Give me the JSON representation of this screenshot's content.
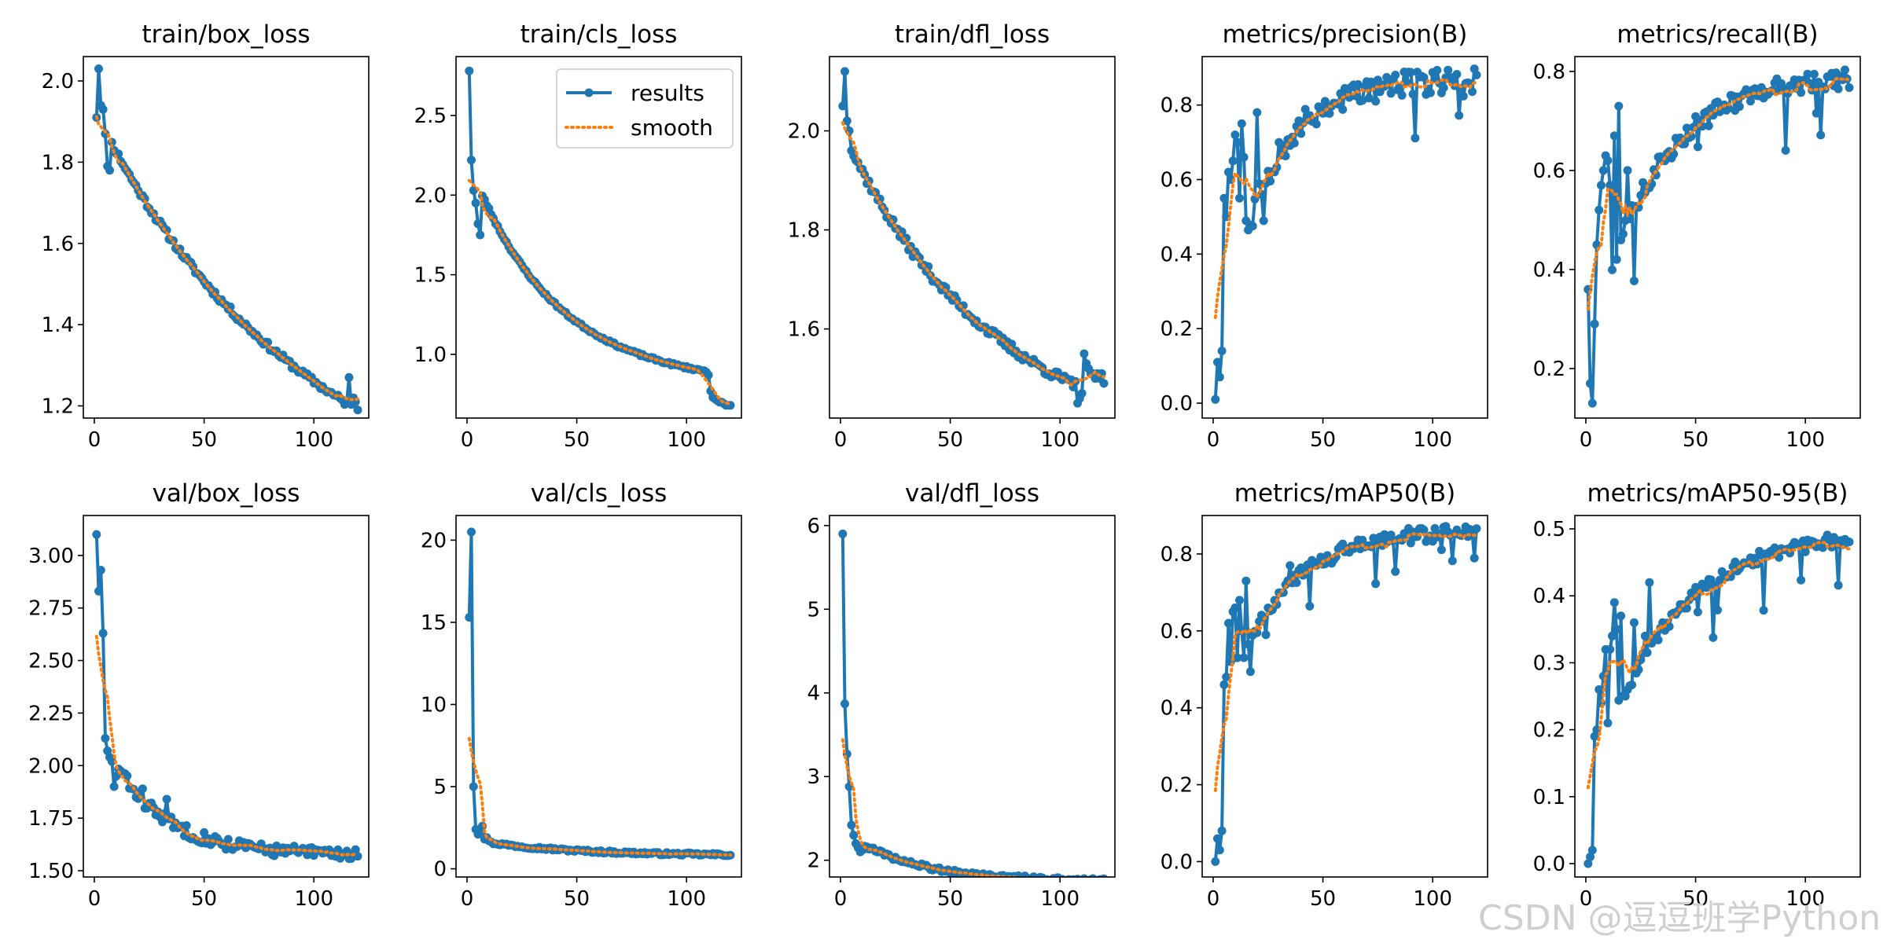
{
  "colors": {
    "results": "#1f77b4",
    "smooth": "#ff7f0e"
  },
  "watermark": "CSDN @逗逗班学Python",
  "legend": {
    "placement": "upper right of train/cls_loss panel",
    "results_label": "results",
    "smooth_label": "smooth"
  },
  "chart_data": [
    {
      "type": "line",
      "title": "train/box_loss",
      "xlim": [
        -5,
        125
      ],
      "ylim": [
        1.17,
        2.06
      ],
      "xticks": [
        0,
        50,
        100
      ],
      "yticks": [
        1.2,
        1.4,
        1.6,
        1.8,
        2.0
      ],
      "ytick_labels": [
        "1.2",
        "1.4",
        "1.6",
        "1.8",
        "2.0"
      ],
      "kind": "decay",
      "start": 1.92,
      "end": 1.19,
      "k": 1.6,
      "seed": 11,
      "special": {
        "1": 1.91,
        "2": 2.03,
        "3": 1.94,
        "4": 1.93,
        "5": 1.87,
        "6": 1.79,
        "7": 1.78,
        "116": 1.27,
        "118": 1.22,
        "119": 1.21,
        "120": 1.19
      },
      "noise": 0.008,
      "spikes": 0,
      "legend": false
    },
    {
      "type": "line",
      "title": "train/cls_loss",
      "xlim": [
        -5,
        125
      ],
      "ylim": [
        0.6,
        2.87
      ],
      "xticks": [
        0,
        50,
        100
      ],
      "yticks": [
        1.0,
        1.5,
        2.0,
        2.5
      ],
      "ytick_labels": [
        "1.0",
        "1.5",
        "2.0",
        "2.5"
      ],
      "kind": "decay",
      "start": 2.2,
      "end": 0.87,
      "k": 3.2,
      "seed": 23,
      "special": {
        "1": 2.78,
        "2": 2.22,
        "3": 2.03,
        "4": 1.95,
        "5": 1.82,
        "6": 1.75,
        "110": 0.87,
        "111": 0.77,
        "112": 0.73,
        "113": 0.72,
        "114": 0.71,
        "115": 0.7,
        "116": 0.7,
        "117": 0.69,
        "118": 0.68,
        "119": 0.68,
        "120": 0.68
      },
      "noise": 0.008,
      "spikes": 0,
      "legend": true
    },
    {
      "type": "line",
      "title": "train/dfl_loss",
      "xlim": [
        -5,
        125
      ],
      "ylim": [
        1.42,
        2.15
      ],
      "xticks": [
        0,
        50,
        100
      ],
      "yticks": [
        1.6,
        1.8,
        2.0
      ],
      "ytick_labels": [
        "1.6",
        "1.8",
        "2.0"
      ],
      "kind": "decay",
      "start": 2.0,
      "end": 1.46,
      "k": 2.0,
      "seed": 37,
      "special": {
        "1": 2.05,
        "2": 2.12,
        "3": 2.02,
        "4": 2.0,
        "5": 1.96,
        "108": 1.45,
        "109": 1.46,
        "110": 1.47,
        "111": 1.55,
        "112": 1.53,
        "113": 1.52,
        "114": 1.51,
        "115": 1.51,
        "116": 1.5,
        "117": 1.51,
        "118": 1.5,
        "119": 1.51,
        "120": 1.49
      },
      "noise": 0.01,
      "spikes": 0,
      "legend": false
    },
    {
      "type": "line",
      "title": "metrics/precision(B)",
      "xlim": [
        -5,
        125
      ],
      "ylim": [
        -0.04,
        0.93
      ],
      "xticks": [
        0,
        50,
        100
      ],
      "yticks": [
        0.0,
        0.2,
        0.4,
        0.6,
        0.8
      ],
      "ytick_labels": [
        "0.0",
        "0.2",
        "0.4",
        "0.6",
        "0.8"
      ],
      "kind": "rise",
      "start": 0.1,
      "end": 0.87,
      "k": 5.5,
      "seed": 53,
      "special": {
        "1": 0.01,
        "2": 0.11,
        "3": 0.07,
        "4": 0.14,
        "5": 0.55,
        "6": 0.5,
        "7": 0.62,
        "8": 0.6,
        "9": 0.65,
        "10": 0.72,
        "11": 0.7,
        "12": 0.55,
        "13": 0.75,
        "14": 0.66,
        "20": 0.78,
        "24": 0.59,
        "30": 0.7
      },
      "noise": 0.035,
      "spikes": 0.1,
      "legend": false
    },
    {
      "type": "line",
      "title": "metrics/recall(B)",
      "xlim": [
        -5,
        125
      ],
      "ylim": [
        0.1,
        0.83
      ],
      "xticks": [
        0,
        50,
        100
      ],
      "yticks": [
        0.2,
        0.4,
        0.6,
        0.8
      ],
      "ytick_labels": [
        "0.2",
        "0.4",
        "0.6",
        "0.8"
      ],
      "kind": "rise",
      "start": 0.22,
      "end": 0.795,
      "k": 4.2,
      "seed": 71,
      "special": {
        "1": 0.36,
        "2": 0.17,
        "3": 0.13,
        "4": 0.29,
        "5": 0.45,
        "6": 0.52,
        "7": 0.57,
        "8": 0.6,
        "9": 0.63,
        "10": 0.62,
        "11": 0.57,
        "13": 0.67,
        "15": 0.73,
        "19": 0.6,
        "35": 0.62,
        "56": 0.69
      },
      "noise": 0.02,
      "spikes": 0.1,
      "legend": false
    },
    {
      "type": "line",
      "title": "val/box_loss",
      "xlim": [
        -5,
        125
      ],
      "ylim": [
        1.47,
        3.19
      ],
      "xticks": [
        0,
        50,
        100
      ],
      "yticks": [
        1.5,
        1.75,
        2.0,
        2.25,
        2.5,
        2.75,
        3.0
      ],
      "ytick_labels": [
        "1.50",
        "1.75",
        "2.00",
        "2.25",
        "2.50",
        "2.75",
        "3.00"
      ],
      "kind": "decay",
      "start": 2.2,
      "end": 1.58,
      "k": 5.0,
      "seed": 83,
      "special": {
        "1": 3.1,
        "2": 2.83,
        "3": 2.93,
        "4": 2.63,
        "5": 2.13,
        "6": 2.07,
        "7": 2.04,
        "8": 2.02,
        "9": 1.9,
        "10": 1.95,
        "22": 1.89,
        "33": 1.84
      },
      "noise": 0.03,
      "spikes": 0,
      "legend": false
    },
    {
      "type": "line",
      "title": "val/cls_loss",
      "xlim": [
        -5,
        125
      ],
      "ylim": [
        -0.5,
        21.5
      ],
      "xticks": [
        0,
        50,
        100
      ],
      "yticks": [
        0,
        5,
        10,
        15,
        20
      ],
      "ytick_labels": [
        "0",
        "5",
        "10",
        "15",
        "20"
      ],
      "kind": "decay",
      "start": 1.8,
      "end": 0.85,
      "k": 3.0,
      "seed": 97,
      "special": {
        "1": 15.3,
        "2": 20.5,
        "3": 5.0,
        "4": 2.4,
        "5": 2.1,
        "6": 2.3,
        "7": 2.6,
        "8": 1.8,
        "9": 1.9,
        "10": 1.7
      },
      "noise": 0.08,
      "spikes": 0,
      "legend": false
    },
    {
      "type": "line",
      "title": "val/dfl_loss",
      "xlim": [
        -5,
        125
      ],
      "ylim": [
        1.8,
        6.12
      ],
      "xticks": [
        0,
        50,
        100
      ],
      "yticks": [
        2,
        3,
        4,
        5,
        6
      ],
      "ytick_labels": [
        "2",
        "3",
        "4",
        "5",
        "6"
      ],
      "kind": "decay",
      "start": 2.35,
      "end": 1.76,
      "k": 4.0,
      "seed": 109,
      "special": {
        "1": 5.9,
        "2": 3.87,
        "3": 3.27,
        "4": 2.88,
        "5": 2.42,
        "6": 2.3,
        "7": 2.2,
        "8": 2.15,
        "9": 2.1,
        "10": 2.12
      },
      "noise": 0.025,
      "spikes": 0,
      "legend": false
    },
    {
      "type": "line",
      "title": "metrics/mAP50(B)",
      "xlim": [
        -5,
        125
      ],
      "ylim": [
        -0.04,
        0.9
      ],
      "xticks": [
        0,
        50,
        100
      ],
      "yticks": [
        0.0,
        0.2,
        0.4,
        0.6,
        0.8
      ],
      "ytick_labels": [
        "0.0",
        "0.2",
        "0.4",
        "0.6",
        "0.8"
      ],
      "kind": "rise",
      "start": 0.35,
      "end": 0.865,
      "k": 4.5,
      "seed": 127,
      "special": {
        "1": 0.0,
        "2": 0.06,
        "3": 0.03,
        "4": 0.08,
        "5": 0.46,
        "6": 0.48,
        "7": 0.62,
        "8": 0.52,
        "9": 0.65,
        "10": 0.66,
        "11": 0.53,
        "12": 0.68,
        "13": 0.6,
        "15": 0.73,
        "24": 0.59,
        "35": 0.77
      },
      "noise": 0.02,
      "spikes": 0.08,
      "legend": false
    },
    {
      "type": "line",
      "title": "metrics/mAP50-95(B)",
      "xlim": [
        -5,
        125
      ],
      "ylim": [
        -0.02,
        0.52
      ],
      "xticks": [
        0,
        50,
        100
      ],
      "yticks": [
        0.0,
        0.1,
        0.2,
        0.3,
        0.4,
        0.5
      ],
      "ytick_labels": [
        "0.0",
        "0.1",
        "0.2",
        "0.3",
        "0.4",
        "0.5"
      ],
      "kind": "rise",
      "start": 0.1,
      "end": 0.497,
      "k": 3.5,
      "seed": 139,
      "special": {
        "1": 0.0,
        "2": 0.01,
        "3": 0.02,
        "4": 0.19,
        "5": 0.2,
        "6": 0.26,
        "7": 0.24,
        "8": 0.28,
        "9": 0.32,
        "10": 0.21,
        "11": 0.32,
        "12": 0.34,
        "13": 0.39,
        "14": 0.35,
        "16": 0.37,
        "18": 0.25,
        "22": 0.36,
        "27": 0.34,
        "29": 0.42
      },
      "noise": 0.01,
      "spikes": 0.06,
      "legend": false
    }
  ]
}
